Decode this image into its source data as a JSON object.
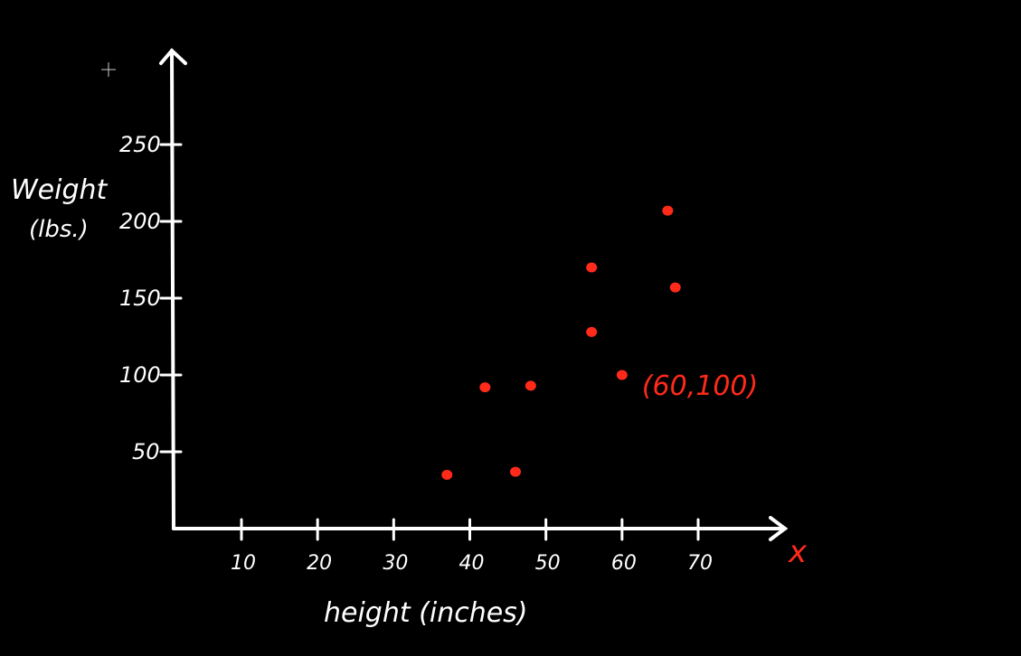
{
  "colors": {
    "background": "#000000",
    "axis": "#ffffff",
    "points": "#ff2a1a",
    "annotation": "#ff2a1a"
  },
  "icons": {
    "cursor": "crosshair-cursor-icon"
  },
  "chart_data": {
    "type": "scatter",
    "title": "",
    "xlabel": "height (inches)",
    "ylabel_line1": "Weight",
    "ylabel_line2": "(lbs.)",
    "x_axis_symbol": "x",
    "xlim": [
      0,
      80
    ],
    "ylim": [
      0,
      300
    ],
    "x_ticks": [
      10,
      20,
      30,
      40,
      50,
      60,
      70
    ],
    "y_ticks": [
      50,
      100,
      150,
      200,
      250
    ],
    "x_tick_labels": [
      "10",
      "20",
      "30",
      "40",
      "50",
      "60",
      "70"
    ],
    "y_tick_labels": [
      "50",
      "100",
      "150",
      "200",
      "250"
    ],
    "grid": false,
    "points": [
      {
        "x": 37,
        "y": 35
      },
      {
        "x": 42,
        "y": 92
      },
      {
        "x": 46,
        "y": 37
      },
      {
        "x": 48,
        "y": 93
      },
      {
        "x": 56,
        "y": 170
      },
      {
        "x": 56,
        "y": 128
      },
      {
        "x": 60,
        "y": 100
      },
      {
        "x": 66,
        "y": 207
      },
      {
        "x": 67,
        "y": 157
      }
    ],
    "annotation": {
      "text": "(60,100)",
      "x": 60,
      "y": 100
    }
  }
}
